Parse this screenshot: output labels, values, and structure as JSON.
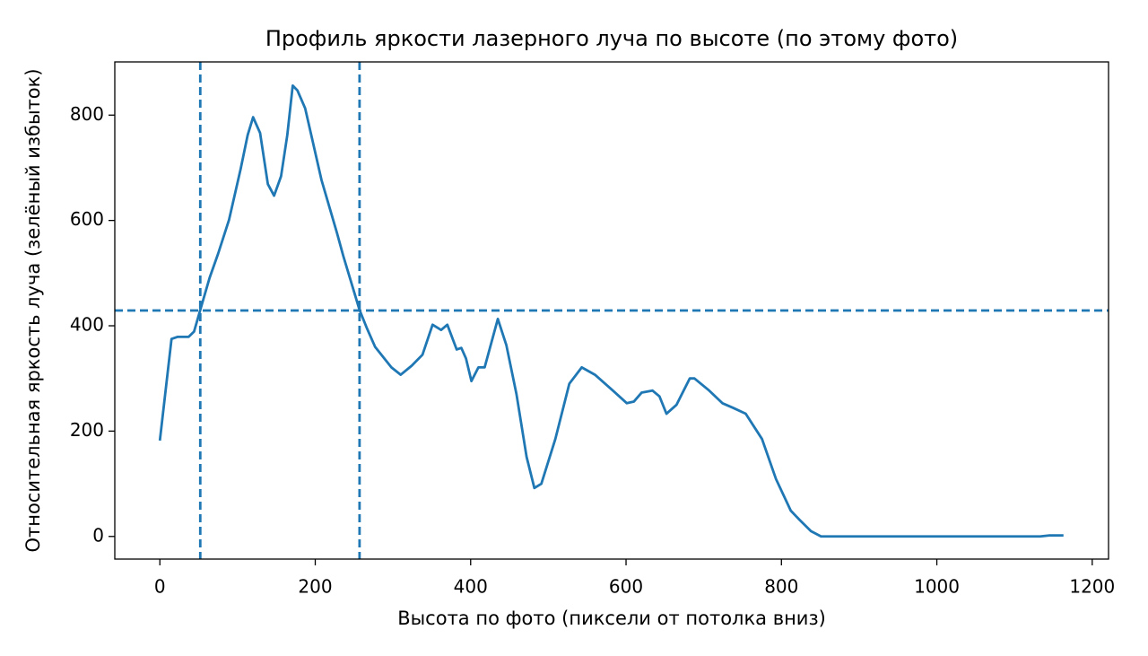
{
  "chart_data": {
    "type": "line",
    "title": "Профиль яркости лазерного луча по высоте (по этому фото)",
    "xlabel": "Высота по фото (пиксели от потолка вниз)",
    "ylabel": "Относительная яркость луча (зелёный избыток)",
    "xlim": [
      -58,
      1221
    ],
    "ylim": [
      -43,
      901
    ],
    "xticks": [
      0,
      200,
      400,
      600,
      800,
      1000,
      1200
    ],
    "yticks": [
      0,
      200,
      400,
      600,
      800
    ],
    "color": "#1f77b4",
    "vlines": [
      52,
      257
    ],
    "hlines": [
      429
    ],
    "x": [
      0,
      15,
      23,
      37,
      44,
      52,
      64,
      75,
      89,
      104,
      113,
      120,
      129,
      139,
      147,
      156,
      164,
      171,
      177,
      187,
      208,
      228,
      236,
      257,
      266,
      277,
      298,
      310,
      324,
      338,
      351,
      362,
      370,
      382,
      388,
      394,
      401,
      410,
      418,
      435,
      446,
      459,
      472,
      482,
      491,
      509,
      527,
      543,
      560,
      583,
      601,
      610,
      620,
      634,
      643,
      652,
      665,
      682,
      688,
      707,
      724,
      738,
      754,
      775,
      793,
      812,
      823,
      838,
      851,
      1133,
      1145,
      1163
    ],
    "values": [
      182,
      375,
      379,
      379,
      389,
      430,
      491,
      537,
      601,
      698,
      762,
      796,
      766,
      669,
      647,
      684,
      762,
      856,
      847,
      813,
      677,
      576,
      533,
      430,
      397,
      360,
      321,
      307,
      324,
      345,
      402,
      392,
      402,
      355,
      358,
      338,
      295,
      321,
      321,
      413,
      363,
      270,
      151,
      92,
      100,
      185,
      290,
      321,
      307,
      277,
      253,
      256,
      273,
      277,
      266,
      233,
      250,
      300,
      300,
      277,
      253,
      244,
      233,
      185,
      109,
      49,
      32,
      10,
      0,
      0,
      2,
      2
    ]
  }
}
